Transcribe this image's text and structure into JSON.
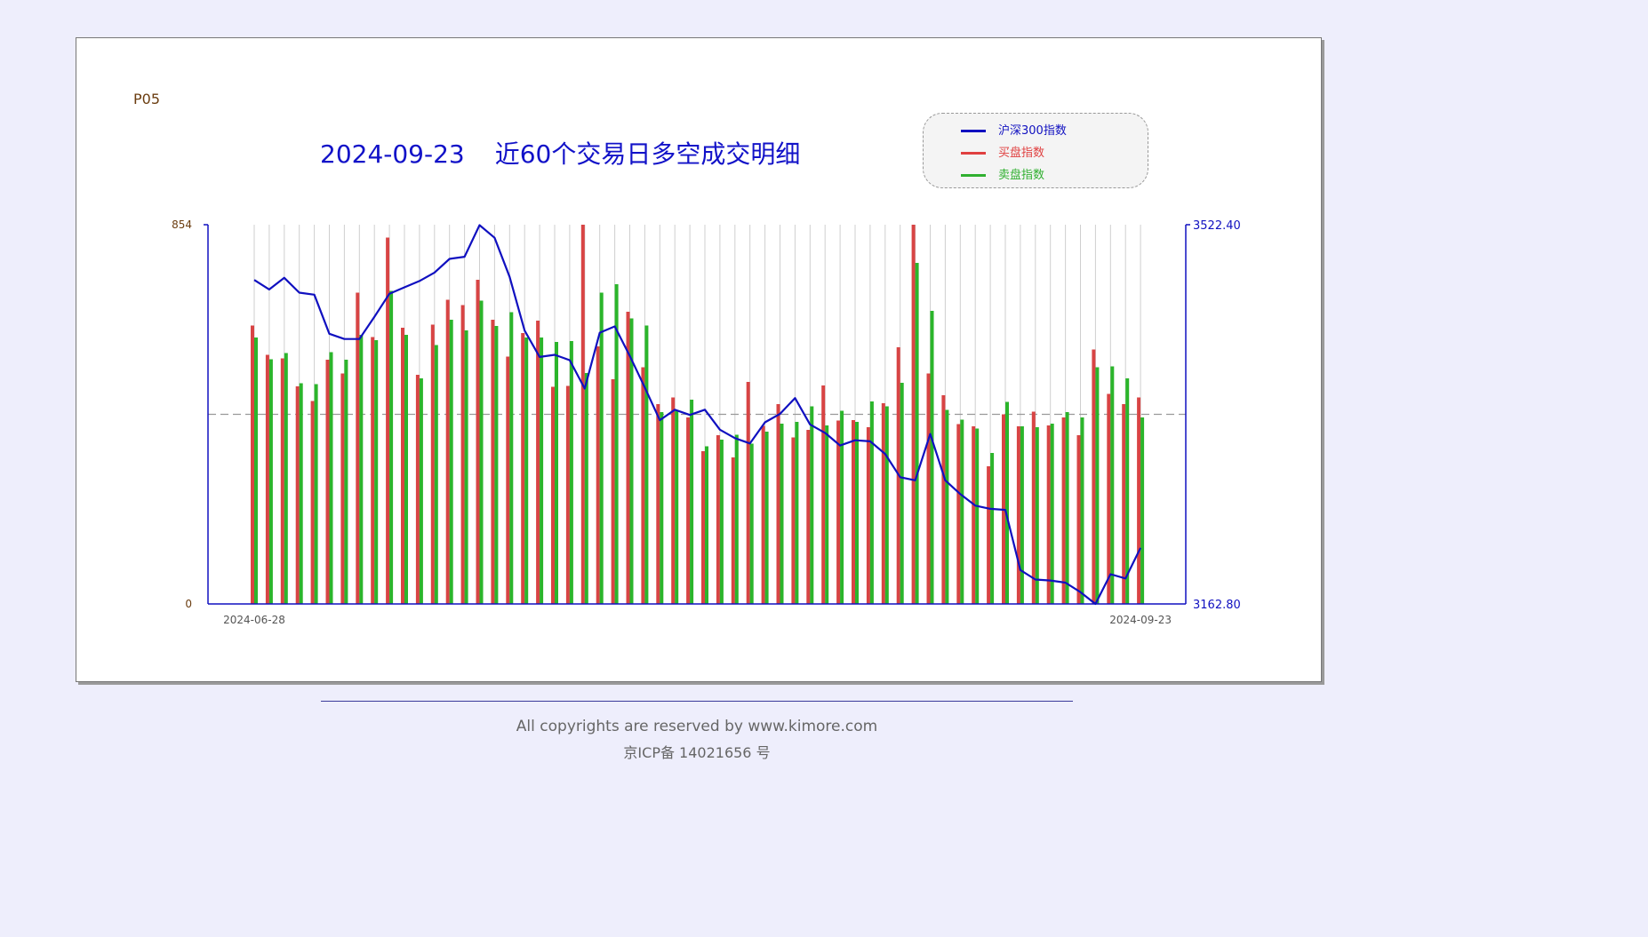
{
  "page": {
    "tag": "P05",
    "title_date": "2024-09-23",
    "title_text": "近60个交易日多空成交明细",
    "copyright": "All copyrights are reserved by www.kimore.com",
    "icp": "京ICP备 14021656 号"
  },
  "legend": {
    "items": [
      {
        "label": "沪深300指数",
        "color": "#1010c0"
      },
      {
        "label": "买盘指数",
        "color": "#e04040"
      },
      {
        "label": "卖盘指数",
        "color": "#30b030"
      }
    ]
  },
  "colors": {
    "index": "#1010c0",
    "buy": "#d84444",
    "sell": "#2bb52b",
    "axis": "#1010c0",
    "left_tick": "#6b3d10"
  },
  "chart_data": {
    "type": "bar",
    "title": "2024-09-23 近60个交易日多空成交明细",
    "x_tick_labels": [
      "2024-06-28",
      "2024-09-23"
    ],
    "left_axis": {
      "min": 0,
      "max": 854,
      "tick_labels": [
        "854",
        "0"
      ]
    },
    "right_axis": {
      "min": 3162.8,
      "max": 3522.4,
      "tick_labels": [
        "3522.40",
        "3162.80"
      ]
    },
    "reference_line": 427,
    "grid": true,
    "series": [
      {
        "name": "买盘指数",
        "type": "bar",
        "axis": "left",
        "values": [
          627,
          561,
          553,
          490,
          457,
          550,
          519,
          701,
          601,
          825,
          622,
          516,
          629,
          685,
          673,
          730,
          640,
          557,
          610,
          638,
          489,
          491,
          854,
          580,
          506,
          658,
          533,
          450,
          465,
          420,
          344,
          380,
          330,
          500,
          401,
          450,
          375,
          392,
          492,
          413,
          414,
          398,
          452,
          578,
          854,
          519,
          470,
          405,
          400,
          310,
          427,
          400,
          433,
          402,
          420,
          380,
          573,
          473,
          450,
          465
        ],
        "visible_color": "#d84444"
      },
      {
        "name": "卖盘指数",
        "type": "bar",
        "axis": "left",
        "values": [
          600,
          551,
          565,
          497,
          495,
          567,
          550,
          606,
          594,
          705,
          606,
          508,
          583,
          640,
          616,
          683,
          626,
          657,
          600,
          600,
          590,
          592,
          520,
          701,
          720,
          643,
          627,
          432,
          436,
          460,
          355,
          370,
          381,
          361,
          388,
          406,
          410,
          445,
          402,
          435,
          410,
          456,
          445,
          498,
          768,
          660,
          437,
          415,
          395,
          340,
          455,
          400,
          398,
          406,
          432,
          420,
          533,
          535,
          508,
          420
        ],
        "visible_color": "#2bb52b"
      },
      {
        "name": "沪深300指数",
        "type": "line",
        "axis": "right",
        "values": [
          3470,
          3461,
          3472,
          3458,
          3456,
          3419,
          3414,
          3414,
          3435,
          3457,
          3463,
          3469,
          3477,
          3490,
          3492,
          3522,
          3510,
          3473,
          3422,
          3397,
          3399,
          3394,
          3367,
          3420,
          3426,
          3398,
          3368,
          3337,
          3347,
          3342,
          3347,
          3328,
          3320,
          3315,
          3335,
          3343,
          3358,
          3333,
          3325,
          3313,
          3318,
          3317,
          3305,
          3283,
          3280,
          3324,
          3280,
          3267,
          3256,
          3253,
          3252,
          3195,
          3186,
          3185,
          3183,
          3174,
          3162.8,
          3191,
          3187,
          3216
        ]
      }
    ]
  }
}
